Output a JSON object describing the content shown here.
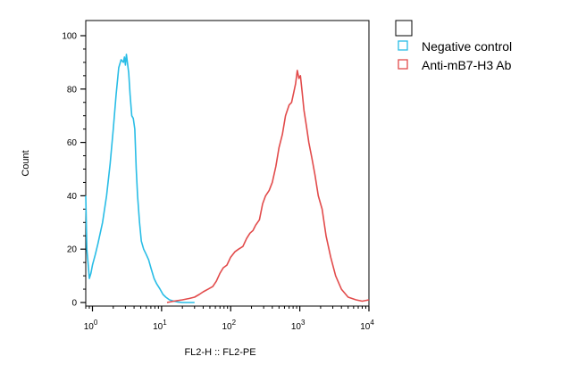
{
  "chart_data": {
    "type": "line",
    "title": "",
    "xlabel": "FL2-H :: FL2-PE",
    "ylabel": "Count",
    "x_scale": "log",
    "xlim": [
      0.8,
      10000
    ],
    "ylim": [
      0,
      100
    ],
    "grid": false,
    "legend_position": "top-right",
    "y_ticks": [
      {
        "value": 0,
        "label": "0"
      },
      {
        "value": 20,
        "label": "20"
      },
      {
        "value": 40,
        "label": "40"
      },
      {
        "value": 60,
        "label": "60"
      },
      {
        "value": 80,
        "label": "80"
      },
      {
        "value": 100,
        "label": "100"
      }
    ],
    "x_ticks": [
      {
        "value": 1,
        "base": "10",
        "exp": "0"
      },
      {
        "value": 10,
        "base": "10",
        "exp": "1"
      },
      {
        "value": 100,
        "base": "10",
        "exp": "2"
      },
      {
        "value": 1000,
        "base": "10",
        "exp": "3"
      },
      {
        "value": 10000,
        "base": "10",
        "exp": "4"
      }
    ],
    "series": [
      {
        "name": "Negative control",
        "color": "#29bde6",
        "x": [
          0.8,
          0.83,
          0.87,
          0.9,
          0.95,
          1.0,
          1.1,
          1.2,
          1.4,
          1.6,
          1.8,
          2.0,
          2.2,
          2.4,
          2.6,
          2.8,
          2.9,
          3.0,
          3.1,
          3.2,
          3.35,
          3.5,
          3.7,
          3.9,
          4.1,
          4.3,
          4.5,
          4.8,
          5.1,
          5.5,
          6.0,
          6.5,
          7.0,
          7.8,
          8.5,
          9.5,
          10.5,
          11.5,
          13,
          15,
          17,
          20,
          24,
          30
        ],
        "y": [
          40,
          20,
          14,
          9,
          11,
          14,
          18,
          22,
          30,
          40,
          52,
          65,
          78,
          88,
          91,
          90,
          92,
          89,
          93,
          90,
          86,
          78,
          70,
          69,
          65,
          50,
          40,
          30,
          23,
          20,
          18,
          16,
          13,
          9,
          7,
          5,
          3,
          2,
          1,
          0.5,
          0.2,
          0,
          0,
          0
        ]
      },
      {
        "name": "Anti-mB7-H3 Ab",
        "color": "#e24b4b",
        "x": [
          12,
          15,
          20,
          25,
          30,
          35,
          40,
          47,
          55,
          62,
          70,
          78,
          88,
          100,
          115,
          130,
          150,
          170,
          190,
          210,
          230,
          260,
          290,
          320,
          360,
          400,
          450,
          500,
          560,
          620,
          700,
          760,
          820,
          870,
          920,
          970,
          1020,
          1080,
          1150,
          1250,
          1350,
          1500,
          1650,
          1850,
          2100,
          2400,
          2800,
          3300,
          4000,
          5000,
          6500,
          8000,
          10000
        ],
        "y": [
          0,
          0.5,
          1,
          1.5,
          2,
          3,
          4,
          5,
          6,
          8,
          11,
          13,
          14,
          17,
          19,
          20,
          21,
          24,
          26,
          27,
          29,
          31,
          37,
          40,
          42,
          45,
          51,
          58,
          63,
          70,
          74,
          75,
          79,
          82,
          87,
          84,
          85,
          79,
          72,
          66,
          60,
          54,
          48,
          40,
          35,
          25,
          17,
          10,
          5,
          2,
          1,
          0.5,
          1
        ]
      }
    ]
  }
}
